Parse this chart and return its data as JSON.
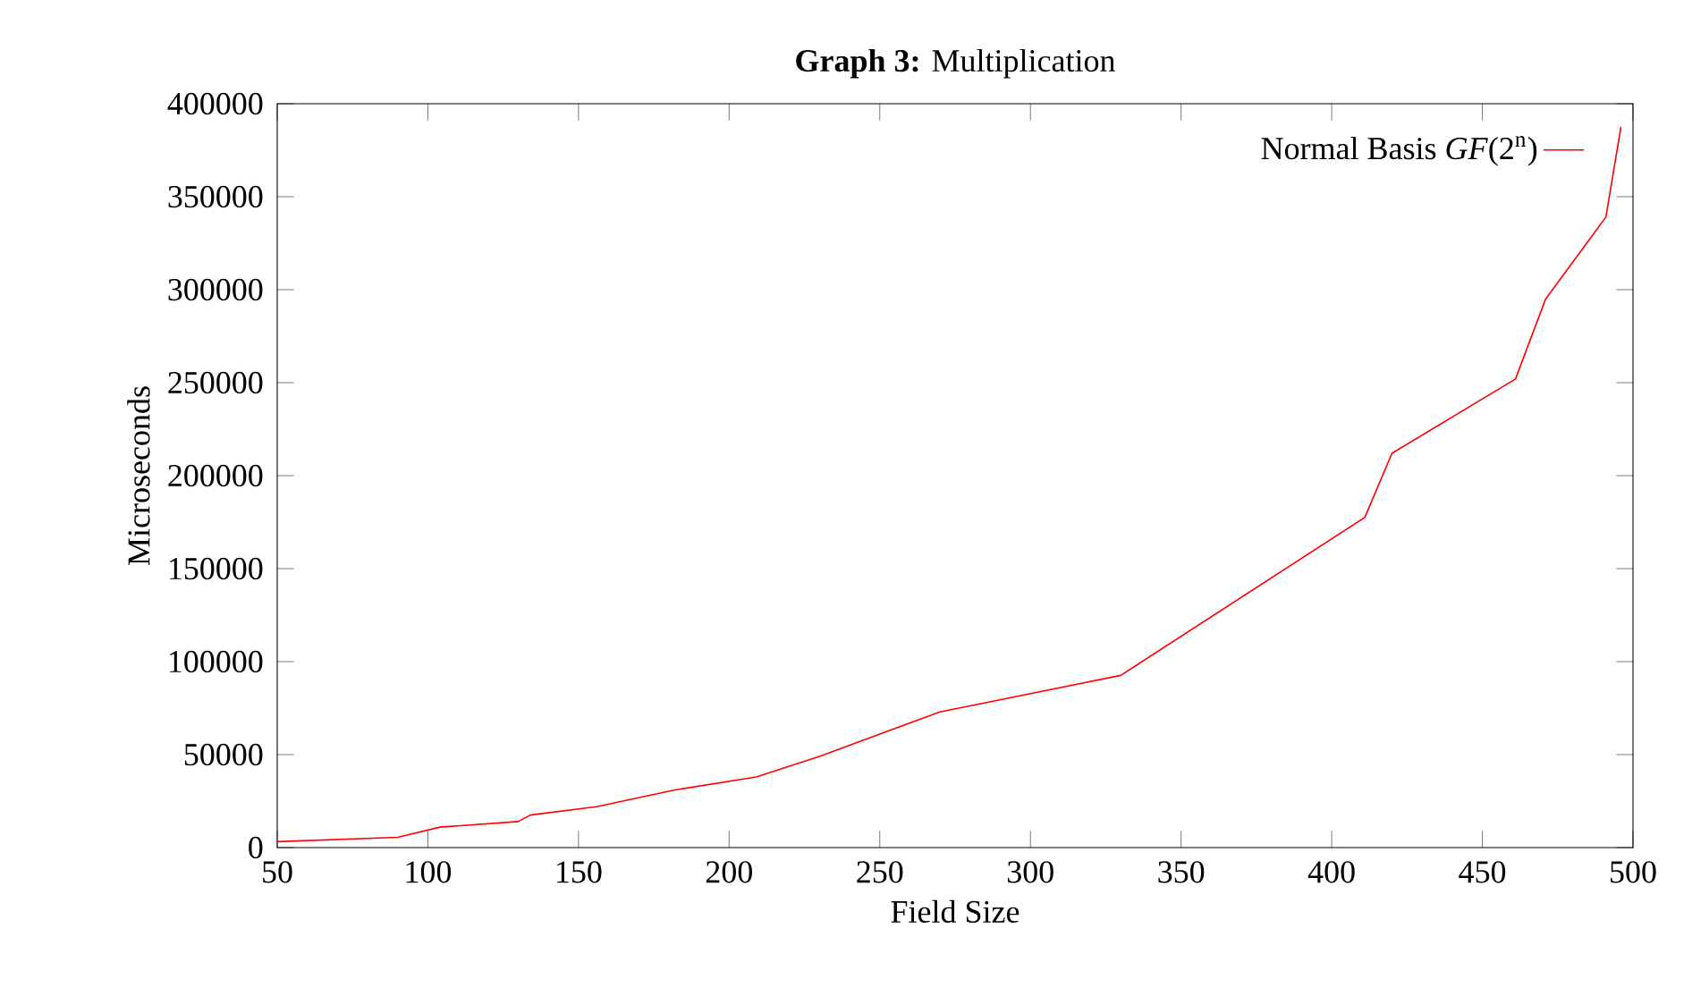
{
  "chart_data": {
    "type": "line",
    "title": "**Graph 3:** Multiplication",
    "xlabel": "Field Size",
    "ylabel": "Microseconds",
    "x": [
      50,
      90,
      104,
      130,
      134,
      156,
      182,
      209,
      230,
      245,
      270,
      330,
      411,
      420,
      461,
      471,
      491,
      496
    ],
    "series": [
      {
        "name": "Normal Basis *GF*(2$^{n}$)",
        "color": "#ff0000",
        "values": [
          3200,
          5500,
          11000,
          14000,
          17500,
          22000,
          31000,
          38000,
          49000,
          58000,
          73000,
          92600,
          177600,
          212000,
          252000,
          295000,
          339000,
          387500
        ]
      }
    ],
    "xlim": [
      50,
      500
    ],
    "ylim": [
      0,
      400000
    ],
    "xticks": [
      50,
      100,
      150,
      200,
      250,
      300,
      350,
      400,
      450,
      500
    ],
    "yticks": [
      0,
      50000,
      100000,
      150000,
      200000,
      250000,
      300000,
      350000,
      400000
    ],
    "legend": "top right",
    "grid": false
  }
}
